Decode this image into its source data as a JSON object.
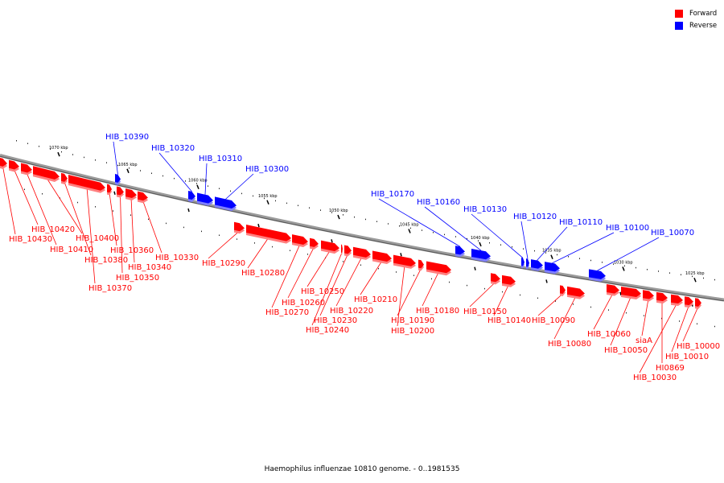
{
  "colors": {
    "forward": "#ff0000",
    "reverse": "#0000ff",
    "backbone": "#808080"
  },
  "legend": [
    {
      "label": "Forward",
      "strand": "forward"
    },
    {
      "label": "Reverse",
      "strand": "reverse"
    }
  ],
  "caption": "Haemophilus influenzae 10810 genome. - 0..1981535",
  "ticks": [
    "1070 kbp",
    "1065 kbp",
    "1060 kbp",
    "1055 kbp",
    "1050 kbp",
    "1045 kbp",
    "1040 kbp",
    "1035 kbp",
    "1030 kbp",
    "1025 kbp"
  ],
  "genes": [
    {
      "label": "HIB_10430",
      "strand": "forward"
    },
    {
      "label": "HIB_10420",
      "strand": "forward"
    },
    {
      "label": "HIB_10410",
      "strand": "forward"
    },
    {
      "label": "HIB_10400",
      "strand": "forward"
    },
    {
      "label": "HIB_10390",
      "strand": "reverse"
    },
    {
      "label": "HIB_10380",
      "strand": "forward"
    },
    {
      "label": "HIB_10370",
      "strand": "forward"
    },
    {
      "label": "HIB_10360",
      "strand": "forward"
    },
    {
      "label": "HIB_10350",
      "strand": "forward"
    },
    {
      "label": "HIB_10340",
      "strand": "forward"
    },
    {
      "label": "HIB_10330",
      "strand": "forward"
    },
    {
      "label": "HIB_10320",
      "strand": "reverse"
    },
    {
      "label": "HIB_10310",
      "strand": "reverse"
    },
    {
      "label": "HIB_10300",
      "strand": "reverse"
    },
    {
      "label": "HIB_10290",
      "strand": "forward"
    },
    {
      "label": "HIB_10280",
      "strand": "forward"
    },
    {
      "label": "HIB_10270",
      "strand": "forward"
    },
    {
      "label": "HIB_10260",
      "strand": "forward"
    },
    {
      "label": "HIB_10250",
      "strand": "forward"
    },
    {
      "label": "HIB_10240",
      "strand": "forward"
    },
    {
      "label": "HIB_10230",
      "strand": "forward"
    },
    {
      "label": "HIB_10220",
      "strand": "forward"
    },
    {
      "label": "HIB_10210",
      "strand": "forward"
    },
    {
      "label": "HIB_10200",
      "strand": "forward"
    },
    {
      "label": "HIB_10190",
      "strand": "forward"
    },
    {
      "label": "HIB_10180",
      "strand": "forward"
    },
    {
      "label": "HIB_10170",
      "strand": "reverse"
    },
    {
      "label": "HIB_10160",
      "strand": "reverse"
    },
    {
      "label": "HIB_10150",
      "strand": "forward"
    },
    {
      "label": "HIB_10140",
      "strand": "forward"
    },
    {
      "label": "HIB_10130",
      "strand": "reverse"
    },
    {
      "label": "HIB_10120",
      "strand": "reverse"
    },
    {
      "label": "HIB_10110",
      "strand": "reverse"
    },
    {
      "label": "HIB_10100",
      "strand": "reverse"
    },
    {
      "label": "HIB_10090",
      "strand": "forward"
    },
    {
      "label": "HIB_10080",
      "strand": "forward"
    },
    {
      "label": "HIB_10070",
      "strand": "reverse"
    },
    {
      "label": "HIB_10060",
      "strand": "forward"
    },
    {
      "label": "HIB_10050",
      "strand": "forward"
    },
    {
      "label": "siaA",
      "strand": "forward"
    },
    {
      "label": "HI0869",
      "strand": "forward"
    },
    {
      "label": "HIB_10030",
      "strand": "forward"
    },
    {
      "label": "HIB_10010",
      "strand": "forward"
    },
    {
      "label": "HIB_10000",
      "strand": "forward"
    }
  ]
}
